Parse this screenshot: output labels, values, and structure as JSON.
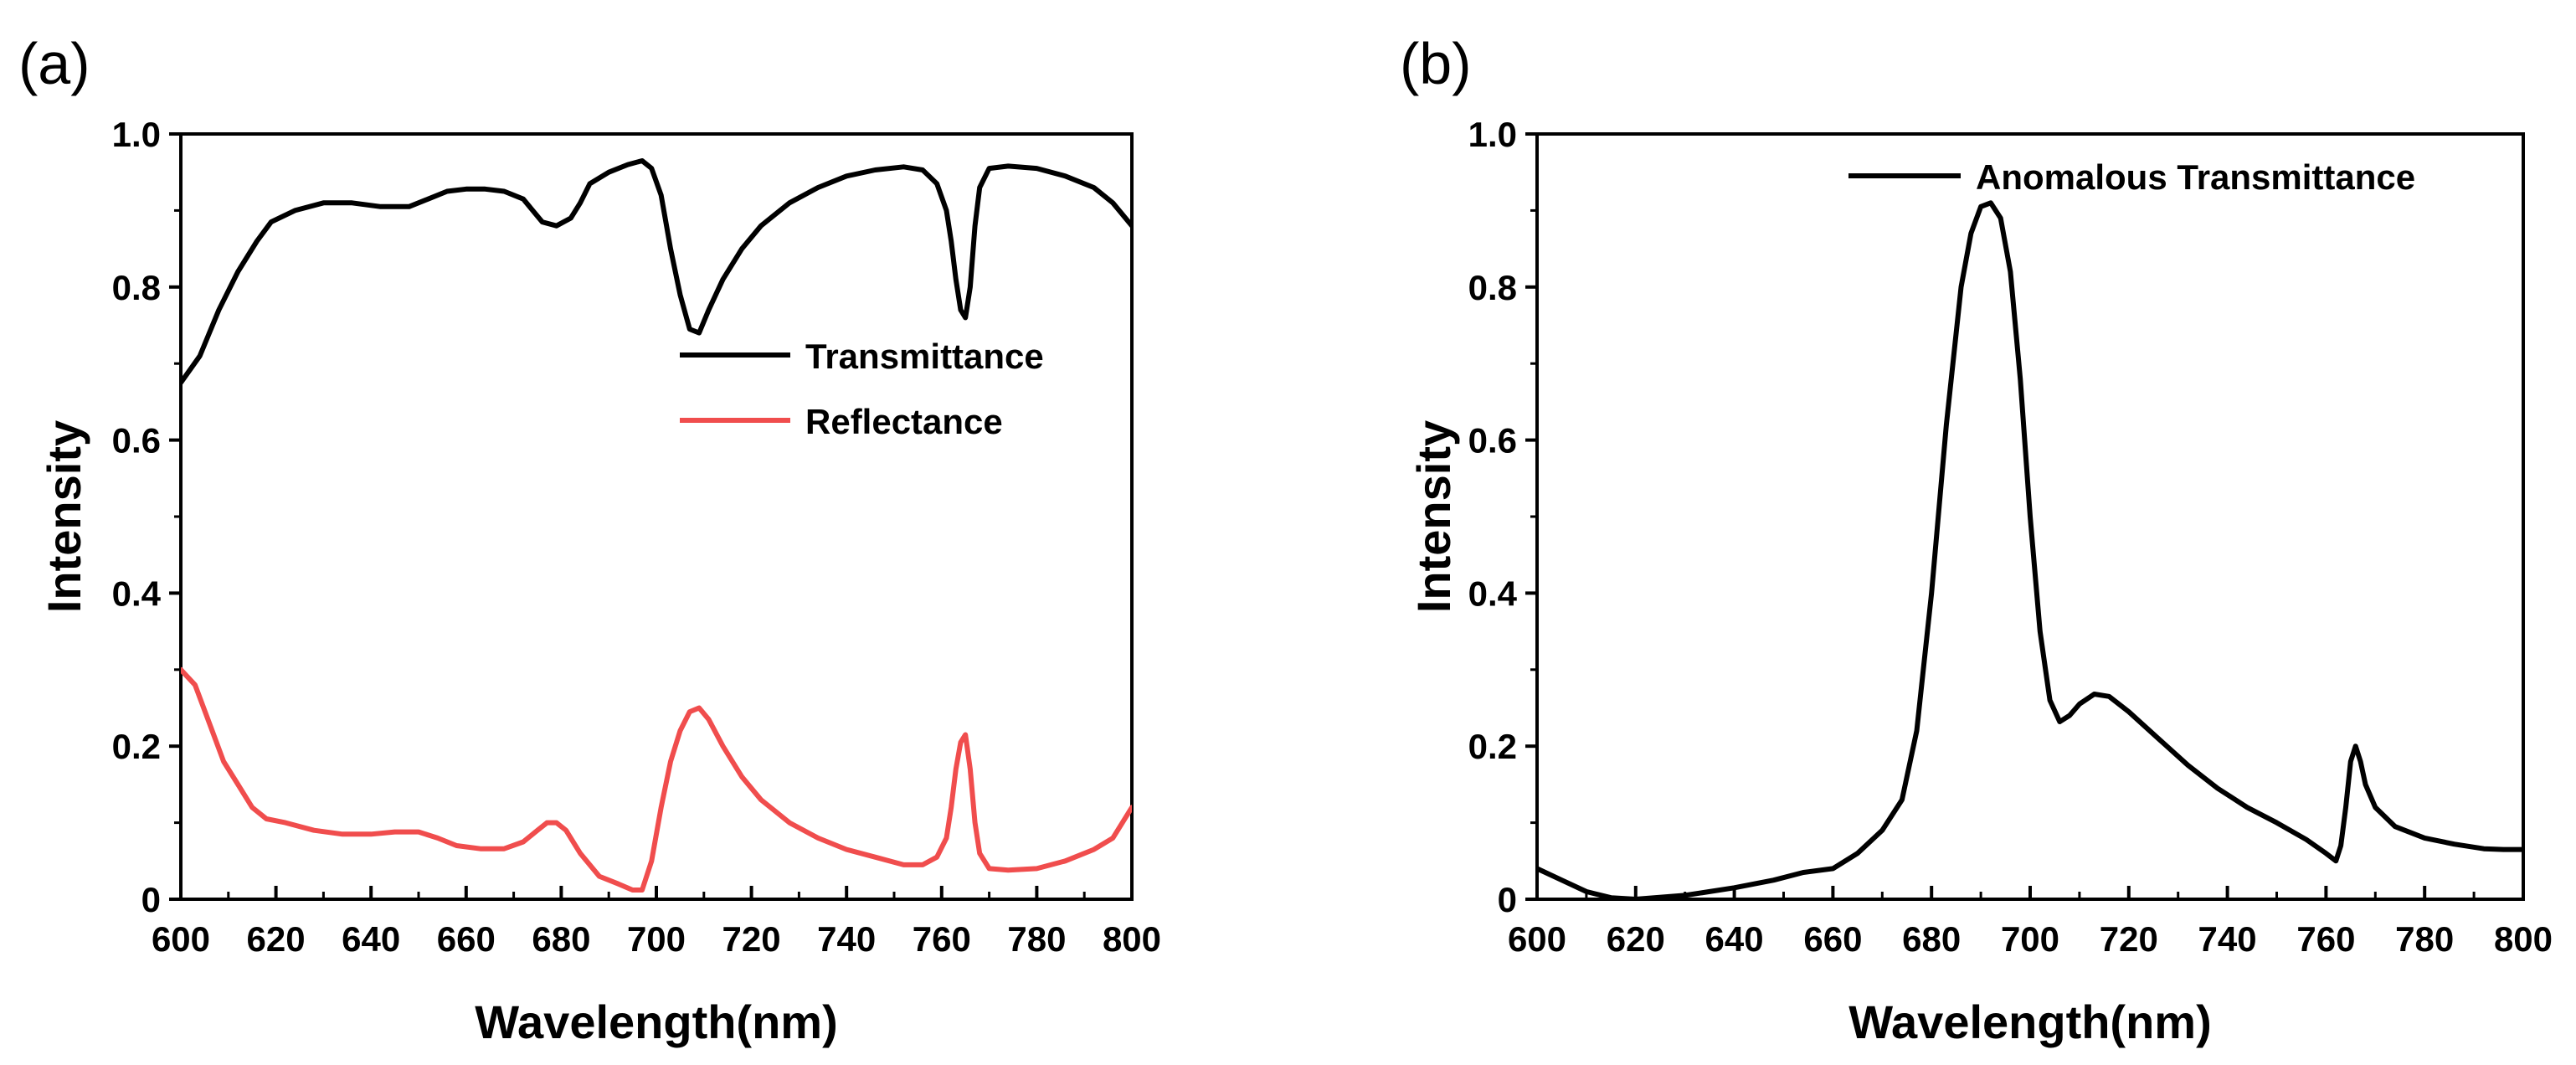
{
  "chart_data": [
    {
      "panel_label": "(a)",
      "type": "line",
      "xlabel": "Wavelength(nm)",
      "ylabel": "Intensity",
      "xlim": [
        600,
        800
      ],
      "ylim": [
        0,
        1
      ],
      "xticks": [
        "600",
        "620",
        "640",
        "660",
        "680",
        "700",
        "720",
        "740",
        "760",
        "780",
        "800"
      ],
      "yticks": [
        "0",
        "0.2",
        "0.4",
        "0.6",
        "0.8",
        "1.0"
      ],
      "legend_position": "center-right",
      "series": [
        {
          "name": "Transmittance",
          "color": "#000000",
          "x": [
            600,
            604,
            608,
            612,
            616,
            619,
            624,
            630,
            636,
            642,
            648,
            652,
            656,
            660,
            664,
            668,
            672,
            676,
            679,
            682,
            684,
            686,
            690,
            694,
            697,
            699,
            701,
            703,
            705,
            707,
            709,
            711,
            714,
            718,
            722,
            728,
            734,
            740,
            746,
            752,
            756,
            759,
            761,
            762,
            763,
            764,
            765,
            766,
            767,
            768,
            770,
            774,
            780,
            786,
            792,
            796,
            800
          ],
          "values": [
            0.675,
            0.71,
            0.77,
            0.82,
            0.86,
            0.885,
            0.9,
            0.91,
            0.91,
            0.905,
            0.905,
            0.915,
            0.925,
            0.928,
            0.928,
            0.925,
            0.915,
            0.885,
            0.88,
            0.89,
            0.91,
            0.935,
            0.95,
            0.96,
            0.965,
            0.955,
            0.92,
            0.85,
            0.79,
            0.745,
            0.74,
            0.77,
            0.81,
            0.85,
            0.88,
            0.91,
            0.93,
            0.945,
            0.953,
            0.957,
            0.953,
            0.935,
            0.9,
            0.86,
            0.81,
            0.77,
            0.76,
            0.8,
            0.88,
            0.93,
            0.955,
            0.958,
            0.955,
            0.945,
            0.93,
            0.91,
            0.88
          ]
        },
        {
          "name": "Reflectance",
          "color": "#f04d4d",
          "x": [
            600,
            603,
            606,
            609,
            612,
            615,
            618,
            622,
            628,
            634,
            640,
            645,
            650,
            654,
            658,
            663,
            668,
            672,
            675,
            677,
            679,
            681,
            684,
            688,
            692,
            695,
            697,
            699,
            701,
            703,
            705,
            707,
            709,
            711,
            714,
            718,
            722,
            728,
            734,
            740,
            746,
            752,
            756,
            759,
            761,
            762,
            763,
            764,
            765,
            766,
            767,
            768,
            770,
            774,
            780,
            786,
            792,
            796,
            800
          ],
          "values": [
            0.3,
            0.28,
            0.23,
            0.18,
            0.15,
            0.12,
            0.105,
            0.1,
            0.09,
            0.085,
            0.085,
            0.088,
            0.088,
            0.08,
            0.07,
            0.066,
            0.066,
            0.075,
            0.09,
            0.1,
            0.1,
            0.09,
            0.06,
            0.03,
            0.02,
            0.012,
            0.012,
            0.05,
            0.12,
            0.18,
            0.22,
            0.245,
            0.25,
            0.235,
            0.2,
            0.16,
            0.13,
            0.1,
            0.08,
            0.065,
            0.055,
            0.045,
            0.045,
            0.055,
            0.08,
            0.12,
            0.17,
            0.205,
            0.215,
            0.17,
            0.1,
            0.06,
            0.04,
            0.038,
            0.04,
            0.05,
            0.065,
            0.08,
            0.12
          ]
        }
      ]
    },
    {
      "panel_label": "(b)",
      "type": "line",
      "xlabel": "Wavelength(nm)",
      "ylabel": "Intensity",
      "xlim": [
        600,
        800
      ],
      "ylim": [
        0,
        1
      ],
      "xticks": [
        "600",
        "620",
        "640",
        "660",
        "680",
        "700",
        "720",
        "740",
        "760",
        "780",
        "800"
      ],
      "yticks": [
        "0",
        "0.2",
        "0.4",
        "0.6",
        "0.8",
        "1.0"
      ],
      "legend_position": "top-right",
      "series": [
        {
          "name": "Anomalous Transmittance",
          "color": "#000000",
          "x": [
            600,
            605,
            610,
            615,
            620,
            630,
            640,
            648,
            654,
            660,
            665,
            670,
            674,
            677,
            680,
            683,
            686,
            688,
            690,
            692,
            694,
            696,
            698,
            700,
            702,
            704,
            706,
            708,
            710,
            713,
            716,
            720,
            726,
            732,
            738,
            744,
            750,
            756,
            760,
            762,
            763,
            764,
            765,
            766,
            767,
            768,
            770,
            774,
            780,
            786,
            792,
            796,
            800
          ],
          "values": [
            0.04,
            0.025,
            0.01,
            0.002,
            0,
            0.005,
            0.015,
            0.025,
            0.035,
            0.04,
            0.06,
            0.09,
            0.13,
            0.22,
            0.4,
            0.62,
            0.8,
            0.87,
            0.905,
            0.91,
            0.89,
            0.82,
            0.68,
            0.5,
            0.35,
            0.26,
            0.232,
            0.24,
            0.255,
            0.268,
            0.265,
            0.245,
            0.21,
            0.175,
            0.145,
            0.12,
            0.1,
            0.078,
            0.06,
            0.05,
            0.07,
            0.12,
            0.18,
            0.2,
            0.18,
            0.15,
            0.12,
            0.095,
            0.08,
            0.072,
            0.066,
            0.065,
            0.065
          ]
        }
      ]
    }
  ]
}
